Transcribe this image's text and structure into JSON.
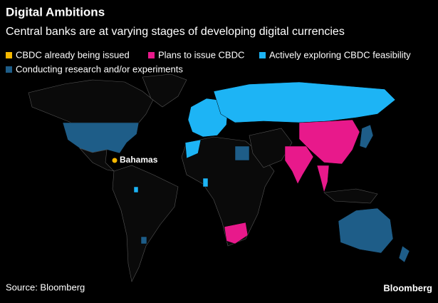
{
  "header": {
    "title": "Digital Ambitions",
    "subtitle": "Central banks are at varying stages of developing digital currencies"
  },
  "legend": [
    {
      "label": "CBDC already being issued",
      "color": "#f5b800"
    },
    {
      "label": "Plans to issue CBDC",
      "color": "#e8198b"
    },
    {
      "label": "Actively exploring CBDC feasibility",
      "color": "#1db4f5"
    },
    {
      "label": "Conducting research and/or experiments",
      "color": "#1e5d88"
    }
  ],
  "annotations": [
    {
      "label": "Bahamas"
    }
  ],
  "footer": {
    "source": "Source: Bloomberg",
    "brand": "Bloomberg"
  }
}
